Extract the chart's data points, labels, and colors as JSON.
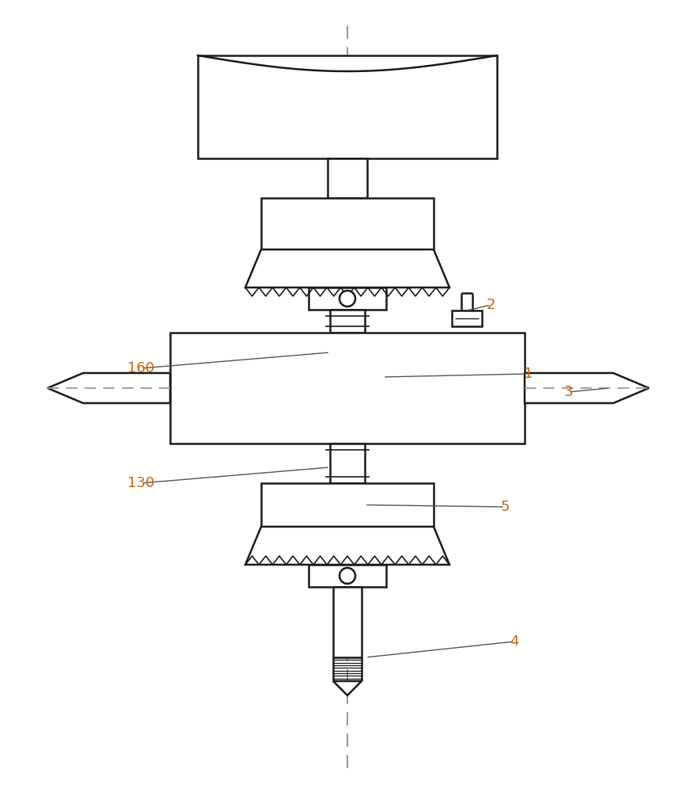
{
  "bg_color": "#ffffff",
  "line_color": "#1a1a1a",
  "dash_color": "#999999",
  "label_color": "#c8640a",
  "fig_width": 8.78,
  "fig_height": 10.0
}
